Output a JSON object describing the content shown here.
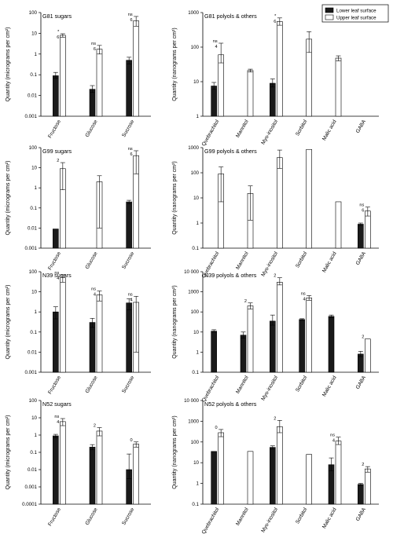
{
  "legend": {
    "position": "top-right",
    "entries": [
      {
        "label": "Lower leaf surface",
        "color": "#1a1a1a"
      },
      {
        "label": "Upper leaf surface",
        "color": "#ffffff"
      }
    ]
  },
  "chart_data": [
    {
      "type": "bar",
      "title": "G81 sugars",
      "ylabel": "Quantity (micrograms per cm²)",
      "yscale": "log",
      "ylim": [
        0.001,
        100
      ],
      "ticks": [
        0.001,
        0.01,
        0.1,
        1,
        10,
        100
      ],
      "tick_labels": [
        "0.001",
        "0.01",
        "0.1",
        "1",
        "10",
        "100"
      ],
      "categories": [
        "Fructose",
        "Glucose",
        "Sucrose"
      ],
      "show_categories": true,
      "series": [
        {
          "name": "Lower leaf surface",
          "values": [
            0.09,
            0.02,
            0.5
          ],
          "err_low": [
            0.07,
            0.014,
            0.33
          ],
          "err_high": [
            0.13,
            0.03,
            0.7
          ]
        },
        {
          "name": "Upper leaf surface",
          "values": [
            8,
            1.7,
            40
          ],
          "err_low": [
            6.5,
            1,
            22
          ],
          "err_high": [
            9.5,
            2.6,
            65
          ]
        }
      ],
      "annotations": [
        {
          "cat": 0,
          "s": 1,
          "top": "*",
          "bottom": "6"
        },
        {
          "cat": 1,
          "s": 1,
          "top": "ns",
          "bottom": "6"
        },
        {
          "cat": 2,
          "s": 1,
          "top": "ns",
          "bottom": "6"
        }
      ]
    },
    {
      "type": "bar",
      "title": "G81 polyols & others",
      "ylabel": "Quantity (nanograms per cm²)",
      "yscale": "log",
      "ylim": [
        1,
        1000
      ],
      "ticks": [
        1,
        10,
        100,
        1000
      ],
      "tick_labels": [
        "1",
        "10",
        "100",
        "1000"
      ],
      "categories": [
        "Quebrachitol",
        "Mannitol",
        "Myo-inositol",
        "Sorbitol",
        "Malic acid",
        "GABA"
      ],
      "show_categories": true,
      "series": [
        {
          "name": "Lower leaf surface",
          "values": [
            7.5,
            null,
            9,
            null,
            null,
            null
          ],
          "err_low": [
            6,
            null,
            7,
            null,
            null,
            null
          ],
          "err_high": [
            9.5,
            null,
            12,
            null,
            null,
            null
          ]
        },
        {
          "name": "Upper leaf surface",
          "values": [
            60,
            21,
            550,
            170,
            48,
            null
          ],
          "err_low": [
            35,
            19,
            430,
            70,
            40,
            null
          ],
          "err_high": [
            130,
            23,
            700,
            280,
            56,
            null
          ]
        }
      ],
      "annotations": [
        {
          "cat": 0,
          "s": 1,
          "top": "ns",
          "bottom": "4"
        },
        {
          "cat": 2,
          "s": 1,
          "top": "*",
          "bottom": "6"
        }
      ]
    },
    {
      "type": "bar",
      "title": "G99 sugars",
      "ylabel": "Quantity (micrograms per cm²)",
      "yscale": "log",
      "ylim": [
        0.001,
        100
      ],
      "ticks": [
        0.001,
        0.01,
        0.1,
        1,
        10,
        100
      ],
      "tick_labels": [
        "0.001",
        "0.01",
        "0.1",
        "1",
        "10",
        "100"
      ],
      "categories": [
        "Fructose",
        "Glucose",
        "Sucrose"
      ],
      "show_categories": true,
      "series": [
        {
          "name": "Lower leaf surface",
          "values": [
            0.009,
            null,
            0.2
          ],
          "err_low": [
            null,
            null,
            0.16
          ],
          "err_high": [
            null,
            null,
            0.24
          ]
        },
        {
          "name": "Upper leaf surface",
          "values": [
            9,
            2,
            40
          ],
          "err_low": [
            0.8,
            0.01,
            5
          ],
          "err_high": [
            18,
            4,
            70
          ]
        }
      ],
      "annotations": [
        {
          "cat": 0,
          "s": 1,
          "top": "2",
          "bottom": ""
        },
        {
          "cat": 2,
          "s": 1,
          "top": "ns",
          "bottom": "6"
        }
      ]
    },
    {
      "type": "bar",
      "title": "G99 polyols & others",
      "ylabel": "Quantity (nanograms per cm²)",
      "yscale": "log",
      "ylim": [
        0.1,
        1000
      ],
      "ticks": [
        0.1,
        1,
        10,
        100,
        1000
      ],
      "tick_labels": [
        "0.1",
        "1",
        "10",
        "100",
        "1000"
      ],
      "categories": [
        "Quebrachitol",
        "Mannitol",
        "Myo-inositol",
        "Sorbitol",
        "Malic acid",
        "GABA"
      ],
      "show_categories": true,
      "series": [
        {
          "name": "Lower leaf surface",
          "values": [
            null,
            null,
            null,
            null,
            null,
            0.9
          ],
          "err_low": [
            null,
            null,
            null,
            null,
            null,
            0.8
          ],
          "err_high": [
            null,
            null,
            null,
            null,
            null,
            1
          ]
        },
        {
          "name": "Upper leaf surface",
          "values": [
            90,
            15,
            400,
            850,
            7,
            3
          ],
          "err_low": [
            7,
            1.3,
            150,
            null,
            null,
            1.9
          ],
          "err_high": [
            170,
            30,
            800,
            null,
            null,
            4.3
          ]
        }
      ],
      "annotations": [
        {
          "cat": 5,
          "s": 1,
          "top": "ns",
          "bottom": "6"
        }
      ]
    },
    {
      "type": "bar",
      "title": "N39 sugars",
      "ylabel": "Quantity (micrograms per cm²)",
      "yscale": "log",
      "ylim": [
        0.001,
        100
      ],
      "ticks": [
        0.001,
        0.01,
        0.1,
        1,
        10,
        100
      ],
      "tick_labels": [
        "0.001",
        "0.01",
        "0.1",
        "1",
        "10",
        "100"
      ],
      "categories": [
        "Fructose",
        "Glucose",
        "Sucrose"
      ],
      "show_categories": true,
      "series": [
        {
          "name": "Lower leaf surface",
          "values": [
            1,
            0.3,
            2.8
          ],
          "err_low": [
            0.45,
            0.17,
            1.3
          ],
          "err_high": [
            1.8,
            0.48,
            4.5
          ]
        },
        {
          "name": "Upper leaf surface",
          "values": [
            50,
            7,
            3
          ],
          "err_low": [
            30,
            3.5,
            0.01
          ],
          "err_high": [
            70,
            11,
            6
          ]
        }
      ],
      "annotations": [
        {
          "cat": 0,
          "s": 1,
          "top": "ns",
          "bottom": "4"
        },
        {
          "cat": 1,
          "s": 1,
          "top": "ns",
          "bottom": "4"
        },
        {
          "cat": 2,
          "s": 1,
          "top": "ns",
          "bottom": "4"
        }
      ]
    },
    {
      "type": "bar",
      "title": "N39 polyols & others",
      "ylabel": "Quantity (nanograms per cm²)",
      "yscale": "log",
      "ylim": [
        0.1,
        10000
      ],
      "ticks": [
        0.1,
        1,
        10,
        100,
        1000,
        10000
      ],
      "tick_labels": [
        "0.1",
        "1",
        "10",
        "100",
        "1000",
        "10 000"
      ],
      "categories": [
        "Quebrachitol",
        "Mannitol",
        "Myo-inositol",
        "Sorbitol",
        "Malic acid",
        "GABA"
      ],
      "show_categories": true,
      "series": [
        {
          "name": "Lower leaf surface",
          "values": [
            11,
            7,
            35,
            42,
            60,
            0.8
          ],
          "err_low": [
            10,
            5,
            22,
            38,
            52,
            0.6
          ],
          "err_high": [
            13,
            10,
            70,
            46,
            70,
            1.1
          ]
        },
        {
          "name": "Upper leaf surface",
          "values": [
            null,
            200,
            3000,
            500,
            null,
            4.5
          ],
          "err_low": [
            null,
            140,
            2200,
            380,
            null,
            null
          ],
          "err_high": [
            null,
            280,
            5000,
            650,
            null,
            null
          ]
        }
      ],
      "annotations": [
        {
          "cat": 1,
          "s": 1,
          "top": "2",
          "bottom": ""
        },
        {
          "cat": 2,
          "s": 1,
          "top": "2",
          "bottom": ""
        },
        {
          "cat": 3,
          "s": 1,
          "top": "ns",
          "bottom": "4"
        },
        {
          "cat": 5,
          "s": 1,
          "top": "2",
          "bottom": ""
        }
      ]
    },
    {
      "type": "bar",
      "title": "N52 sugars",
      "ylabel": "Quantity (micrograms per cm²)",
      "yscale": "log",
      "ylim": [
        0.0001,
        100
      ],
      "ticks": [
        0.0001,
        0.001,
        0.01,
        0.1,
        1,
        10,
        100
      ],
      "tick_labels": [
        "0.0001",
        "0.001",
        "0.01",
        "0.1",
        "1",
        "10",
        "100"
      ],
      "categories": [
        "Fructose",
        "Glucose",
        "Sucrose"
      ],
      "show_categories": true,
      "series": [
        {
          "name": "Lower leaf surface",
          "values": [
            0.9,
            0.2,
            0.01
          ],
          "err_low": [
            0.7,
            0.14,
            0.003
          ],
          "err_high": [
            1.1,
            0.28,
            0.08
          ]
        },
        {
          "name": "Upper leaf surface",
          "values": [
            6,
            1.7,
            0.3
          ],
          "err_low": [
            3.5,
            0.9,
            0.2
          ],
          "err_high": [
            9,
            2.7,
            0.4
          ]
        }
      ],
      "annotations": [
        {
          "cat": 0,
          "s": 1,
          "top": "ns",
          "bottom": "4"
        },
        {
          "cat": 1,
          "s": 1,
          "top": "2",
          "bottom": ""
        },
        {
          "cat": 2,
          "s": 1,
          "top": "0",
          "bottom": ""
        }
      ]
    },
    {
      "type": "bar",
      "title": "N52 polyols & others",
      "ylabel": "Quantity (nanograms per cm²)",
      "yscale": "log",
      "ylim": [
        0.1,
        10000
      ],
      "ticks": [
        0.1,
        1,
        10,
        100,
        1000,
        10000
      ],
      "tick_labels": [
        "0.1",
        "1",
        "10",
        "100",
        "1000",
        "10 000"
      ],
      "categories": [
        "Quebrachitol",
        "Mannitol",
        "Myo-inositol",
        "Sorbitol",
        "Malic acid",
        "GABA"
      ],
      "show_categories": true,
      "series": [
        {
          "name": "Lower leaf surface",
          "values": [
            35,
            null,
            55,
            null,
            8,
            0.9
          ],
          "err_low": [
            null,
            null,
            45,
            null,
            4,
            0.8
          ],
          "err_high": [
            null,
            null,
            65,
            null,
            17,
            1
          ]
        },
        {
          "name": "Upper leaf surface",
          "values": [
            280,
            35,
            550,
            25,
            110,
            5
          ],
          "err_low": [
            180,
            null,
            280,
            null,
            75,
            3.5
          ],
          "err_high": [
            400,
            null,
            1100,
            null,
            170,
            6.5
          ]
        }
      ],
      "annotations": [
        {
          "cat": 0,
          "s": 1,
          "top": "0",
          "bottom": ""
        },
        {
          "cat": 2,
          "s": 1,
          "top": "2",
          "bottom": ""
        },
        {
          "cat": 4,
          "s": 1,
          "top": "ns",
          "bottom": "4"
        },
        {
          "cat": 5,
          "s": 1,
          "top": "2",
          "bottom": ""
        }
      ]
    }
  ]
}
